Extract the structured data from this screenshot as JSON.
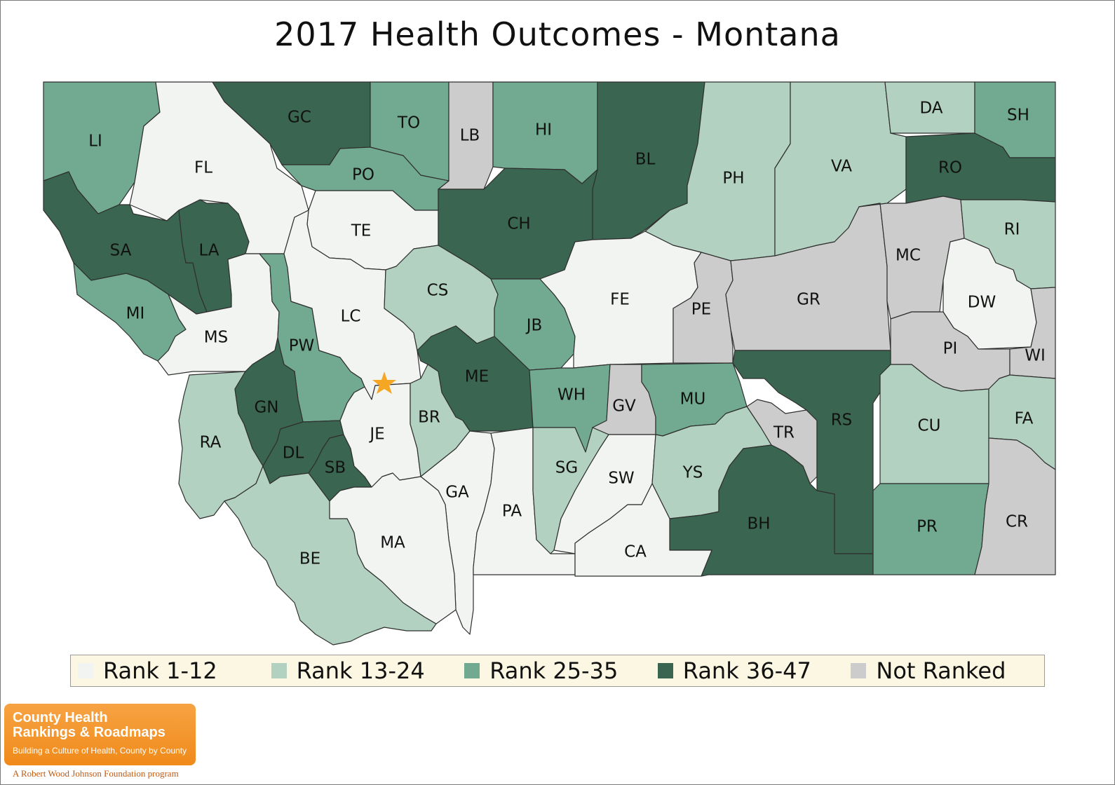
{
  "title": "2017 Health Outcomes - Montana",
  "colors": {
    "rank_1_12": "#f2f4f2",
    "rank_13_24": "#b2d1c1",
    "rank_25_35": "#71aa90",
    "rank_36_47": "#3a6651",
    "not_ranked": "#cccccc",
    "star": "#f5a623"
  },
  "legend": [
    {
      "label": "Rank 1-12",
      "color_key": "rank_1_12"
    },
    {
      "label": "Rank 13-24",
      "color_key": "rank_13_24"
    },
    {
      "label": "Rank 25-35",
      "color_key": "rank_25_35"
    },
    {
      "label": "Rank 36-47",
      "color_key": "rank_36_47"
    },
    {
      "label": "Not Ranked",
      "color_key": "not_ranked"
    }
  ],
  "counties": [
    {
      "code": "LI",
      "category": "rank_25_35"
    },
    {
      "code": "FL",
      "category": "rank_1_12"
    },
    {
      "code": "GC",
      "category": "rank_36_47"
    },
    {
      "code": "TO",
      "category": "rank_25_35"
    },
    {
      "code": "LB",
      "category": "not_ranked"
    },
    {
      "code": "HI",
      "category": "rank_25_35"
    },
    {
      "code": "BL",
      "category": "rank_36_47"
    },
    {
      "code": "PH",
      "category": "rank_13_24"
    },
    {
      "code": "VA",
      "category": "rank_13_24"
    },
    {
      "code": "DA",
      "category": "rank_13_24"
    },
    {
      "code": "SH",
      "category": "rank_25_35"
    },
    {
      "code": "RO",
      "category": "rank_36_47"
    },
    {
      "code": "PO",
      "category": "rank_25_35"
    },
    {
      "code": "SA",
      "category": "rank_36_47"
    },
    {
      "code": "LA",
      "category": "rank_36_47"
    },
    {
      "code": "TE",
      "category": "rank_1_12"
    },
    {
      "code": "CH",
      "category": "rank_36_47"
    },
    {
      "code": "MI",
      "category": "rank_25_35"
    },
    {
      "code": "MS",
      "category": "rank_1_12"
    },
    {
      "code": "PW",
      "category": "rank_25_35"
    },
    {
      "code": "LC",
      "category": "rank_1_12"
    },
    {
      "code": "CS",
      "category": "rank_13_24"
    },
    {
      "code": "JB",
      "category": "rank_25_35"
    },
    {
      "code": "FE",
      "category": "rank_1_12"
    },
    {
      "code": "PE",
      "category": "not_ranked"
    },
    {
      "code": "GR",
      "category": "not_ranked"
    },
    {
      "code": "MC",
      "category": "not_ranked"
    },
    {
      "code": "RI",
      "category": "rank_13_24"
    },
    {
      "code": "DW",
      "category": "rank_1_12"
    },
    {
      "code": "PI",
      "category": "not_ranked"
    },
    {
      "code": "WI",
      "category": "not_ranked"
    },
    {
      "code": "ME",
      "category": "rank_36_47"
    },
    {
      "code": "WH",
      "category": "rank_25_35"
    },
    {
      "code": "GV",
      "category": "not_ranked"
    },
    {
      "code": "MU",
      "category": "rank_25_35"
    },
    {
      "code": "TR",
      "category": "not_ranked"
    },
    {
      "code": "RS",
      "category": "rank_36_47"
    },
    {
      "code": "CU",
      "category": "rank_13_24"
    },
    {
      "code": "FA",
      "category": "rank_13_24"
    },
    {
      "code": "RA",
      "category": "rank_13_24"
    },
    {
      "code": "GN",
      "category": "rank_36_47"
    },
    {
      "code": "DL",
      "category": "rank_36_47"
    },
    {
      "code": "SB",
      "category": "rank_36_47"
    },
    {
      "code": "JE",
      "category": "rank_1_12"
    },
    {
      "code": "BR",
      "category": "rank_13_24"
    },
    {
      "code": "GA",
      "category": "rank_1_12"
    },
    {
      "code": "PA",
      "category": "rank_1_12"
    },
    {
      "code": "SG",
      "category": "rank_13_24"
    },
    {
      "code": "SW",
      "category": "rank_1_12"
    },
    {
      "code": "YS",
      "category": "rank_13_24"
    },
    {
      "code": "BH",
      "category": "rank_36_47"
    },
    {
      "code": "PR",
      "category": "rank_25_35"
    },
    {
      "code": "CR",
      "category": "not_ranked"
    },
    {
      "code": "BE",
      "category": "rank_13_24"
    },
    {
      "code": "MA",
      "category": "rank_1_12"
    },
    {
      "code": "CA",
      "category": "rank_1_12"
    }
  ],
  "logo": {
    "title_line1": "County Health",
    "title_line2": "Rankings & Roadmaps",
    "tagline": "Building a Culture of Health, County by County",
    "program": "A Robert Wood Johnson Foundation program"
  }
}
